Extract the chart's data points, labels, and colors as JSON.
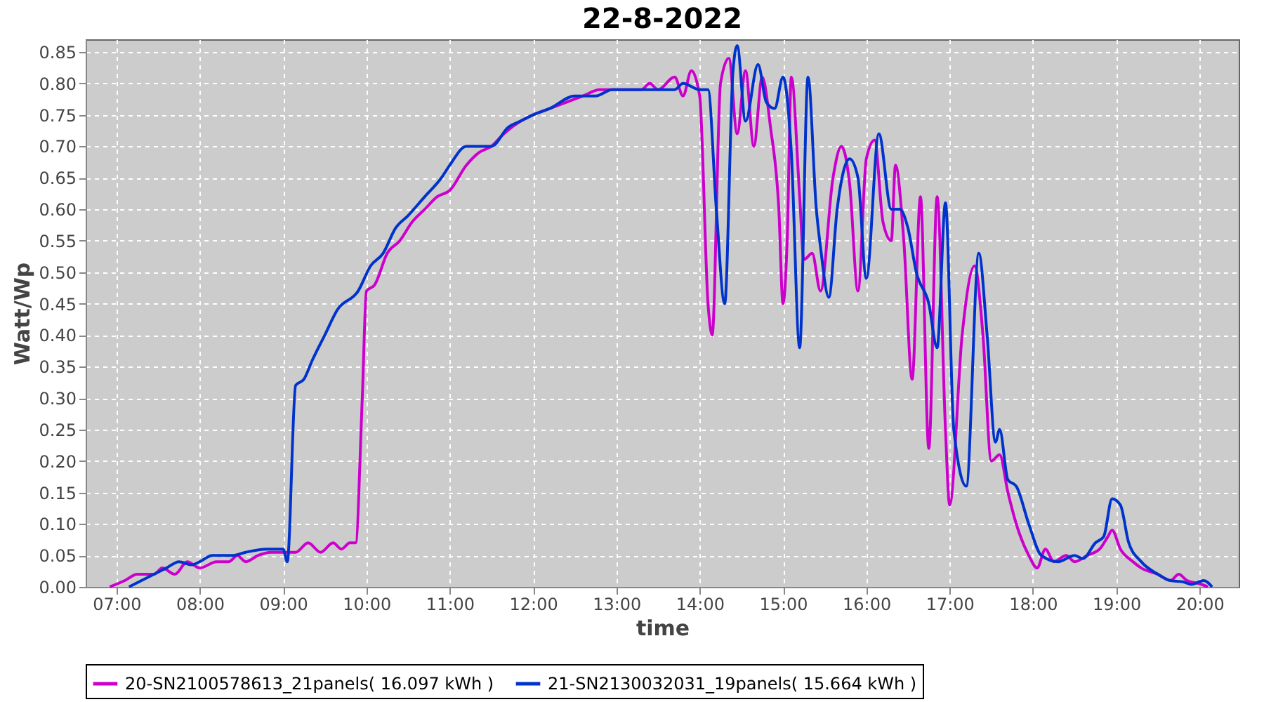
{
  "chart_data": {
    "type": "line",
    "title": "22-8-2022",
    "xlabel": "time",
    "ylabel": "Watt/Wp",
    "xlim": [
      6.63,
      20.47
    ],
    "ylim": [
      0,
      0.87
    ],
    "xticks": [
      {
        "value": 7,
        "label": "07:00"
      },
      {
        "value": 8,
        "label": "08:00"
      },
      {
        "value": 9,
        "label": "09:00"
      },
      {
        "value": 10,
        "label": "10:00"
      },
      {
        "value": 11,
        "label": "11:00"
      },
      {
        "value": 12,
        "label": "12:00"
      },
      {
        "value": 13,
        "label": "13:00"
      },
      {
        "value": 14,
        "label": "14:00"
      },
      {
        "value": 15,
        "label": "15:00"
      },
      {
        "value": 16,
        "label": "16:00"
      },
      {
        "value": 17,
        "label": "17:00"
      },
      {
        "value": 18,
        "label": "18:00"
      },
      {
        "value": 19,
        "label": "19:00"
      },
      {
        "value": 20,
        "label": "20:00"
      }
    ],
    "yticks": [
      {
        "value": 0,
        "label": "0.00"
      },
      0.05,
      {
        "value": 0.1,
        "label": "0.10"
      },
      0.15,
      {
        "value": 0.2,
        "label": "0.20"
      },
      0.25,
      {
        "value": 0.3,
        "label": "0.30"
      },
      0.35,
      {
        "value": 0.4,
        "label": "0.40"
      },
      0.45,
      {
        "value": 0.5,
        "label": "0.50"
      },
      0.55,
      {
        "value": 0.6,
        "label": "0.60"
      },
      0.65,
      {
        "value": 0.7,
        "label": "0.70"
      },
      0.75,
      {
        "value": 0.8,
        "label": "0.80"
      },
      0.85
    ],
    "grid": true,
    "legend": "bottom",
    "line_style": "solid",
    "marker": "none",
    "series": [
      {
        "name": "20-SN2100578613_21panels( 16.097 kWh )",
        "color": "#cc00cc",
        "x": [
          6.92,
          7.1,
          7.25,
          7.45,
          7.55,
          7.7,
          7.85,
          8.0,
          8.2,
          8.35,
          8.45,
          8.55,
          8.7,
          8.85,
          9.0,
          9.15,
          9.3,
          9.45,
          9.6,
          9.7,
          9.8,
          9.87,
          9.95,
          10.0,
          10.1,
          10.25,
          10.4,
          10.55,
          10.7,
          10.85,
          11.0,
          11.2,
          11.35,
          11.5,
          11.65,
          11.85,
          12.0,
          12.2,
          12.4,
          12.6,
          12.8,
          13.0,
          13.3,
          13.4,
          13.5,
          13.7,
          13.8,
          13.9,
          14.0,
          14.1,
          14.15,
          14.25,
          14.35,
          14.45,
          14.55,
          14.65,
          14.75,
          14.85,
          14.95,
          15.0,
          15.05,
          15.1,
          15.2,
          15.25,
          15.35,
          15.45,
          15.6,
          15.7,
          15.8,
          15.9,
          16.0,
          16.1,
          16.2,
          16.3,
          16.35,
          16.45,
          16.55,
          16.65,
          16.75,
          16.85,
          16.95,
          17.0,
          17.15,
          17.3,
          17.4,
          17.5,
          17.6,
          17.7,
          17.8,
          17.95,
          18.05,
          18.15,
          18.25,
          18.4,
          18.5,
          18.65,
          18.8,
          18.9,
          18.95,
          19.05,
          19.2,
          19.3,
          19.5,
          19.65,
          19.75,
          19.85,
          20.0,
          20.1
        ],
        "values": [
          0,
          0.01,
          0.02,
          0.02,
          0.03,
          0.02,
          0.04,
          0.03,
          0.04,
          0.04,
          0.05,
          0.04,
          0.05,
          0.055,
          0.055,
          0.055,
          0.07,
          0.055,
          0.07,
          0.06,
          0.07,
          0.07,
          0.3,
          0.47,
          0.48,
          0.53,
          0.55,
          0.58,
          0.6,
          0.62,
          0.63,
          0.67,
          0.69,
          0.7,
          0.72,
          0.74,
          0.75,
          0.76,
          0.77,
          0.78,
          0.79,
          0.79,
          0.79,
          0.8,
          0.79,
          0.81,
          0.78,
          0.82,
          0.78,
          0.45,
          0.4,
          0.8,
          0.84,
          0.72,
          0.82,
          0.7,
          0.81,
          0.73,
          0.6,
          0.45,
          0.55,
          0.81,
          0.62,
          0.52,
          0.53,
          0.47,
          0.65,
          0.7,
          0.64,
          0.47,
          0.68,
          0.71,
          0.58,
          0.55,
          0.67,
          0.55,
          0.33,
          0.62,
          0.22,
          0.62,
          0.25,
          0.13,
          0.4,
          0.51,
          0.4,
          0.2,
          0.21,
          0.15,
          0.1,
          0.05,
          0.03,
          0.06,
          0.04,
          0.05,
          0.04,
          0.05,
          0.06,
          0.08,
          0.09,
          0.06,
          0.04,
          0.03,
          0.02,
          0.01,
          0.02,
          0.01,
          0.005,
          0
        ]
      },
      {
        "name": "21-SN2130032031_19panels( 15.664 kWh )",
        "color": "#0033cc",
        "x": [
          7.15,
          7.3,
          7.45,
          7.6,
          7.75,
          7.9,
          8.0,
          8.15,
          8.4,
          8.55,
          8.8,
          9.0,
          9.05,
          9.15,
          9.25,
          9.35,
          9.5,
          9.65,
          9.9,
          10.05,
          10.2,
          10.35,
          10.5,
          10.7,
          10.9,
          11.0,
          11.2,
          11.35,
          11.5,
          11.7,
          11.85,
          12.0,
          12.2,
          12.5,
          12.75,
          12.95,
          13.3,
          13.7,
          13.8,
          14.0,
          14.1,
          14.2,
          14.3,
          14.4,
          14.45,
          14.55,
          14.7,
          14.8,
          14.9,
          15.0,
          15.1,
          15.2,
          15.3,
          15.4,
          15.45,
          15.55,
          15.65,
          15.8,
          15.9,
          16.0,
          16.15,
          16.3,
          16.4,
          16.5,
          16.6,
          16.75,
          16.85,
          16.95,
          17.05,
          17.2,
          17.35,
          17.45,
          17.55,
          17.6,
          17.7,
          17.8,
          17.95,
          18.1,
          18.3,
          18.5,
          18.6,
          18.75,
          18.85,
          18.95,
          19.05,
          19.15,
          19.3,
          19.5,
          19.65,
          19.8,
          19.9,
          20.05,
          20.15
        ],
        "values": [
          0,
          0.01,
          0.02,
          0.03,
          0.04,
          0.035,
          0.04,
          0.05,
          0.05,
          0.055,
          0.06,
          0.06,
          0.04,
          0.32,
          0.33,
          0.36,
          0.4,
          0.44,
          0.47,
          0.51,
          0.53,
          0.57,
          0.59,
          0.62,
          0.65,
          0.67,
          0.7,
          0.7,
          0.7,
          0.73,
          0.74,
          0.75,
          0.76,
          0.78,
          0.78,
          0.79,
          0.79,
          0.79,
          0.8,
          0.79,
          0.79,
          0.6,
          0.45,
          0.82,
          0.86,
          0.74,
          0.83,
          0.77,
          0.76,
          0.81,
          0.69,
          0.38,
          0.81,
          0.6,
          0.54,
          0.46,
          0.6,
          0.68,
          0.65,
          0.49,
          0.72,
          0.6,
          0.6,
          0.57,
          0.5,
          0.45,
          0.38,
          0.61,
          0.25,
          0.16,
          0.53,
          0.4,
          0.23,
          0.25,
          0.17,
          0.16,
          0.1,
          0.05,
          0.04,
          0.05,
          0.045,
          0.07,
          0.08,
          0.14,
          0.13,
          0.07,
          0.04,
          0.02,
          0.01,
          0.008,
          0.004,
          0.01,
          0
        ]
      }
    ]
  }
}
